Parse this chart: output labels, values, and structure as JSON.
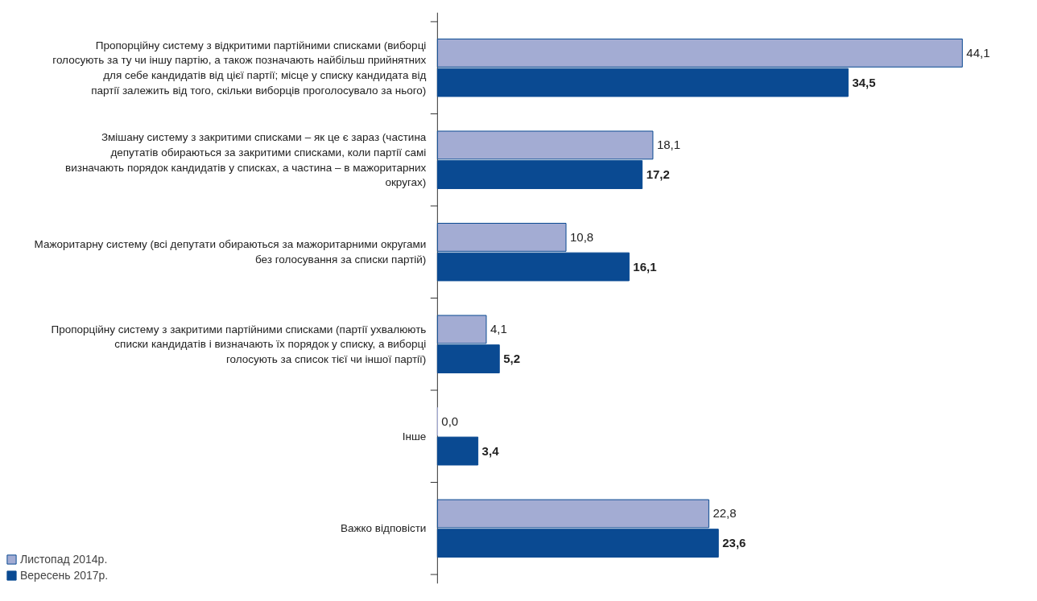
{
  "chart_data": {
    "type": "bar",
    "orientation": "horizontal",
    "legend": "bottom left",
    "grid": false,
    "categories": [
      "Пропорційну систему з відкритими партійними списками (виборці голосують за ту чи іншу партію, а також позначають найбільш прийнятних для себе кандидатів від цієї партії; місце у списку кандидата від партії залежить від того, скільки виборців проголосувало за нього)",
      "Змішану систему з закритими списками – як це є зараз (частина депутатів обираються за закритими списками, коли партії самі визначають порядок кандидатів у списках, а частина – в мажоритарних округах)",
      "Мажоритарну систему (всі депутати обираються за мажоритарними округами без голосування за списки партій)",
      "Пропорційну систему з закритими партійними списками (партії ухвалюють списки кандидатів і визначають їх порядок у списку, а виборці голосують за список тієї чи іншої партії)",
      "Інше",
      "Важко відповісти"
    ],
    "series": [
      {
        "name": "Листопад 2014р.",
        "color": "#a3acd3",
        "values": [
          44.1,
          18.1,
          10.8,
          4.1,
          0.0,
          22.8
        ],
        "value_labels": [
          "44,1",
          "18,1",
          "10,8",
          "4,1",
          "0,0",
          "22,8"
        ]
      },
      {
        "name": "Вересень 2017р.",
        "color": "#0a4a92",
        "values": [
          34.5,
          17.2,
          16.1,
          5.2,
          3.4,
          23.6
        ],
        "value_labels": [
          "34,5",
          "17,2",
          "16,1",
          "5,2",
          "3,4",
          "23,6"
        ]
      }
    ]
  }
}
